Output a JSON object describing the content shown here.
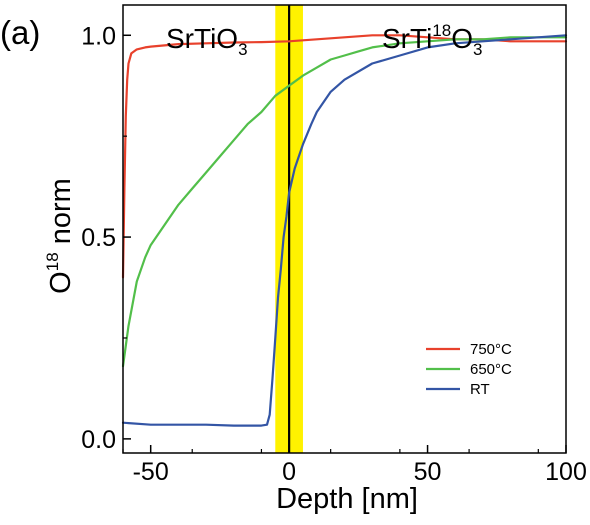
{
  "panel_label": "(a)",
  "regions": {
    "left": {
      "base": "SrTiO",
      "sub": "3"
    },
    "right": {
      "base": "SrTi",
      "sup": "18",
      "base2": "O",
      "sub": "3"
    }
  },
  "chart_data": {
    "type": "line",
    "xlabel": "Depth [nm]",
    "ylabel": {
      "base": "O",
      "sup": "18",
      "rest": " norm"
    },
    "xlim": [
      -60,
      100
    ],
    "ylim": [
      -0.035,
      1.075
    ],
    "xticks": [
      -50,
      0,
      50,
      100
    ],
    "xtick_labels": [
      "-50",
      "0",
      "50",
      "100"
    ],
    "yticks": [
      0.0,
      0.5,
      1.0
    ],
    "ytick_labels": [
      "0.0",
      "0.5",
      "1.0"
    ],
    "interface": {
      "x": 0,
      "band": [
        -5,
        5
      ],
      "band_color": "#fff200",
      "line_color": "#000000"
    },
    "legend_position": "lower-right",
    "series": [
      {
        "name": "750°C",
        "color": "#e8412c",
        "x": [
          -60,
          -59.5,
          -59,
          -58.5,
          -58,
          -57,
          -55,
          -52,
          -50,
          -40,
          -30,
          -20,
          -10,
          0,
          10,
          20,
          30,
          40,
          50,
          60,
          70,
          80,
          90,
          100
        ],
        "y": [
          0.4,
          0.62,
          0.8,
          0.89,
          0.93,
          0.955,
          0.965,
          0.97,
          0.972,
          0.978,
          0.98,
          0.982,
          0.983,
          0.985,
          0.99,
          0.995,
          1.0,
          1.0,
          0.995,
          0.99,
          0.99,
          0.985,
          0.985,
          0.985
        ]
      },
      {
        "name": "650°C",
        "color": "#52bf4a",
        "x": [
          -60,
          -58,
          -55,
          -52,
          -50,
          -45,
          -40,
          -35,
          -30,
          -25,
          -20,
          -15,
          -10,
          -5,
          0,
          5,
          10,
          15,
          20,
          25,
          30,
          40,
          50,
          60,
          70,
          80,
          90,
          100
        ],
        "y": [
          0.18,
          0.28,
          0.39,
          0.45,
          0.48,
          0.53,
          0.58,
          0.62,
          0.66,
          0.7,
          0.74,
          0.78,
          0.81,
          0.85,
          0.875,
          0.9,
          0.92,
          0.94,
          0.95,
          0.96,
          0.97,
          0.98,
          0.985,
          0.99,
          0.99,
          0.995,
          0.995,
          0.995
        ]
      },
      {
        "name": "RT",
        "color": "#3355a5",
        "x": [
          -60,
          -50,
          -40,
          -30,
          -20,
          -10,
          -8,
          -7,
          -6,
          -5,
          -4,
          -3,
          -2,
          -1,
          0,
          2,
          5,
          8,
          10,
          15,
          20,
          30,
          40,
          50,
          60,
          70,
          80,
          90,
          100
        ],
        "y": [
          0.04,
          0.035,
          0.035,
          0.035,
          0.033,
          0.033,
          0.035,
          0.06,
          0.15,
          0.25,
          0.35,
          0.42,
          0.5,
          0.55,
          0.61,
          0.67,
          0.73,
          0.78,
          0.81,
          0.86,
          0.89,
          0.93,
          0.95,
          0.97,
          0.98,
          0.985,
          0.99,
          0.995,
          1.0
        ]
      }
    ]
  }
}
